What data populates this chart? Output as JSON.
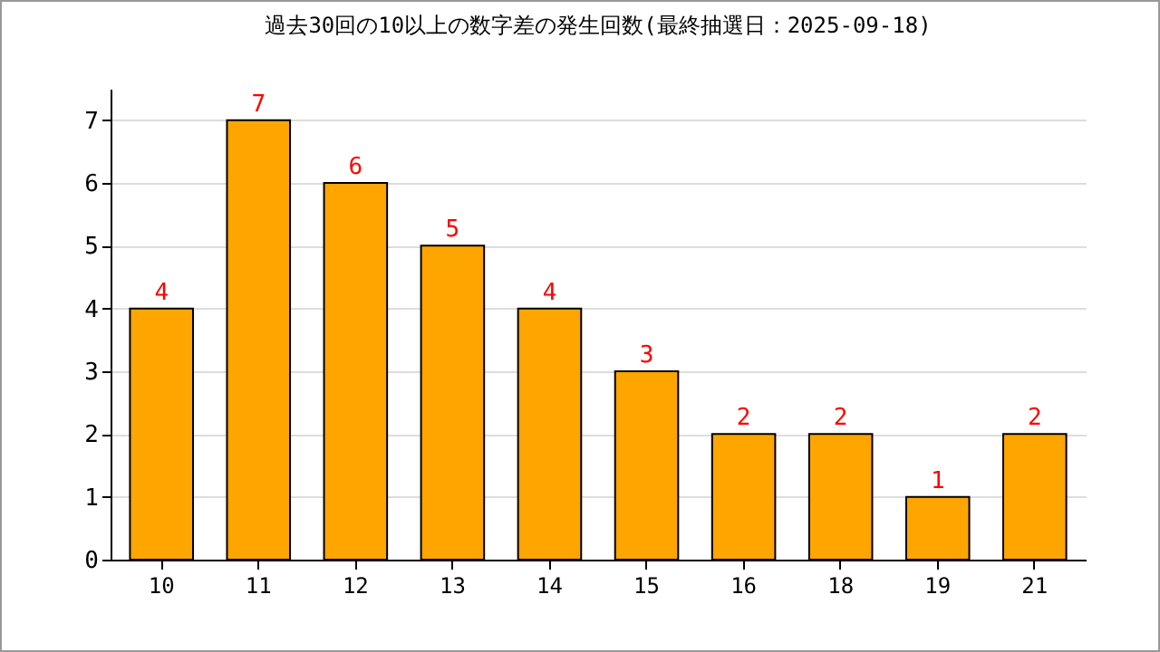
{
  "chart_data": {
    "type": "bar",
    "title": "過去30回の10以上の数字差の発生回数(最終抽選日：2025-09-18)",
    "categories": [
      "10",
      "11",
      "12",
      "13",
      "14",
      "15",
      "16",
      "18",
      "19",
      "21"
    ],
    "values": [
      4,
      7,
      6,
      5,
      4,
      3,
      2,
      2,
      1,
      2
    ],
    "color": "#ffa500",
    "ylim": [
      0,
      7.5
    ],
    "yticks": [
      0,
      1,
      2,
      3,
      4,
      5,
      6,
      7
    ],
    "grid": "y",
    "data_labels": true
  }
}
